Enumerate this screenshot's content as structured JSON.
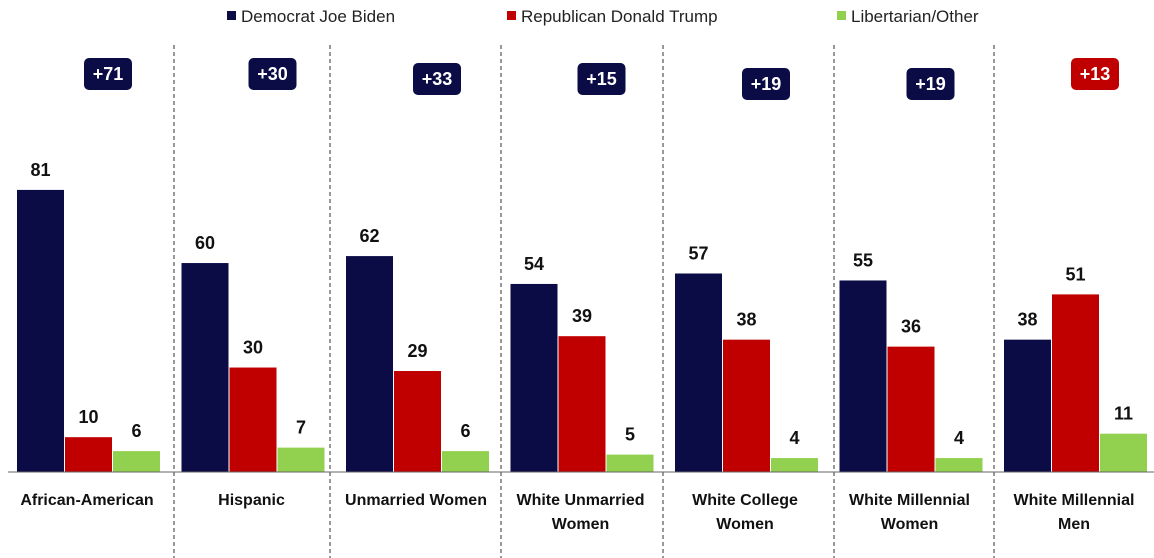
{
  "chart_data": {
    "type": "bar",
    "categories": [
      "African-American",
      "Hispanic",
      "Unmarried Women",
      "White Unmarried Women",
      "White College Women",
      "White Millennial Women",
      "White Millennial Men"
    ],
    "category_lines": [
      [
        "African-American"
      ],
      [
        "Hispanic"
      ],
      [
        "Unmarried Women"
      ],
      [
        "White Unmarried",
        "Women"
      ],
      [
        "White College",
        "Women"
      ],
      [
        "White Millennial",
        "Women"
      ],
      [
        "White Millennial",
        "Men"
      ]
    ],
    "series": [
      {
        "name": "Democrat Joe Biden",
        "color": "#0b0b45",
        "values": [
          81,
          60,
          62,
          54,
          57,
          55,
          38
        ]
      },
      {
        "name": "Republican Donald Trump",
        "color": "#c00000",
        "values": [
          10,
          30,
          29,
          39,
          38,
          36,
          51
        ]
      },
      {
        "name": "Libertarian/Other",
        "color": "#92d050",
        "values": [
          6,
          7,
          6,
          5,
          4,
          4,
          11
        ]
      }
    ],
    "margins": [
      {
        "label": "+71",
        "color": "#0b0b45"
      },
      {
        "label": "+30",
        "color": "#0b0b45"
      },
      {
        "label": "+33",
        "color": "#0b0b45"
      },
      {
        "label": "+15",
        "color": "#0b0b45"
      },
      {
        "label": "+19",
        "color": "#0b0b45"
      },
      {
        "label": "+19",
        "color": "#0b0b45"
      },
      {
        "label": "+13",
        "color": "#c00000"
      }
    ],
    "ylim": [
      0,
      100
    ],
    "grid": false,
    "legend_position": "top",
    "title": "",
    "xlabel": "",
    "ylabel": ""
  }
}
